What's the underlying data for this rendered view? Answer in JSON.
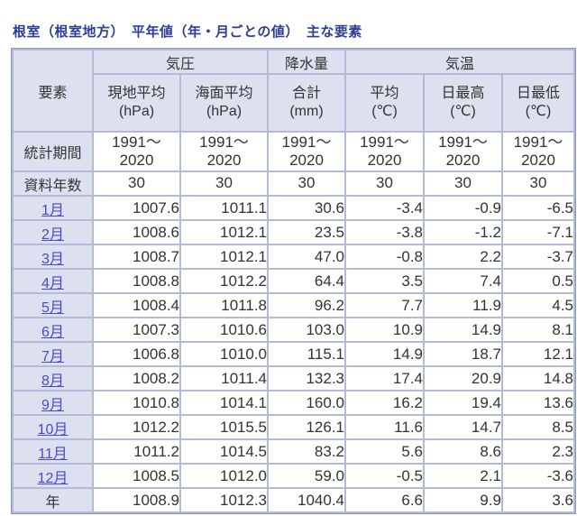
{
  "title": "根室（根室地方）　平年値（年・月ごとの値）　主な要素",
  "colors": {
    "title_text": "#2d3d96",
    "link_text": "#4a4ac9",
    "header_bg": "#dde0ee",
    "grid_line": "#b2bad7",
    "outer_border": "#8b96b6",
    "data_text": "#333333"
  },
  "table": {
    "corner_label": "要素",
    "groups": [
      {
        "label": "気圧"
      },
      {
        "label": "降水量"
      },
      {
        "label": "気温"
      }
    ],
    "columns": [
      {
        "label": "現地平均",
        "unit": "(hPa)"
      },
      {
        "label": "海面平均",
        "unit": "(hPa)"
      },
      {
        "label": "合計",
        "unit": "(mm)"
      },
      {
        "label": "平均",
        "unit": "(℃)"
      },
      {
        "label": "日最高",
        "unit": "(℃)"
      },
      {
        "label": "日最低",
        "unit": "(℃)"
      }
    ],
    "stat_period_label": "統計期間",
    "stat_period_value": "1991～\n2020",
    "data_years_label": "資料年数",
    "data_years_value": "30",
    "rows": [
      {
        "label": "1月",
        "link": true,
        "values": [
          "1007.6",
          "1011.1",
          "30.6",
          "-3.4",
          "-0.9",
          "-6.5"
        ]
      },
      {
        "label": "2月",
        "link": true,
        "values": [
          "1008.6",
          "1012.1",
          "23.5",
          "-3.8",
          "-1.2",
          "-7.1"
        ]
      },
      {
        "label": "3月",
        "link": true,
        "values": [
          "1008.7",
          "1012.1",
          "47.0",
          "-0.8",
          "2.2",
          "-3.7"
        ]
      },
      {
        "label": "4月",
        "link": true,
        "values": [
          "1008.8",
          "1012.2",
          "64.4",
          "3.5",
          "7.4",
          "0.5"
        ]
      },
      {
        "label": "5月",
        "link": true,
        "values": [
          "1008.4",
          "1011.8",
          "96.2",
          "7.7",
          "11.9",
          "4.5"
        ]
      },
      {
        "label": "6月",
        "link": true,
        "values": [
          "1007.3",
          "1010.6",
          "103.0",
          "10.9",
          "14.9",
          "8.1"
        ]
      },
      {
        "label": "7月",
        "link": true,
        "values": [
          "1006.8",
          "1010.0",
          "115.1",
          "14.9",
          "18.7",
          "12.1"
        ]
      },
      {
        "label": "8月",
        "link": true,
        "values": [
          "1008.2",
          "1011.4",
          "132.3",
          "17.4",
          "20.9",
          "14.8"
        ]
      },
      {
        "label": "9月",
        "link": true,
        "values": [
          "1010.8",
          "1014.1",
          "160.0",
          "16.2",
          "19.4",
          "13.6"
        ]
      },
      {
        "label": "10月",
        "link": true,
        "values": [
          "1012.2",
          "1015.5",
          "126.1",
          "11.6",
          "14.7",
          "8.5"
        ]
      },
      {
        "label": "11月",
        "link": true,
        "values": [
          "1011.2",
          "1014.5",
          "83.2",
          "5.6",
          "8.6",
          "2.3"
        ]
      },
      {
        "label": "12月",
        "link": true,
        "values": [
          "1008.5",
          "1012.0",
          "59.0",
          "-0.5",
          "2.1",
          "-3.6"
        ]
      },
      {
        "label": "年",
        "link": false,
        "values": [
          "1008.9",
          "1012.3",
          "1040.4",
          "6.6",
          "9.9",
          "3.6"
        ]
      }
    ]
  }
}
